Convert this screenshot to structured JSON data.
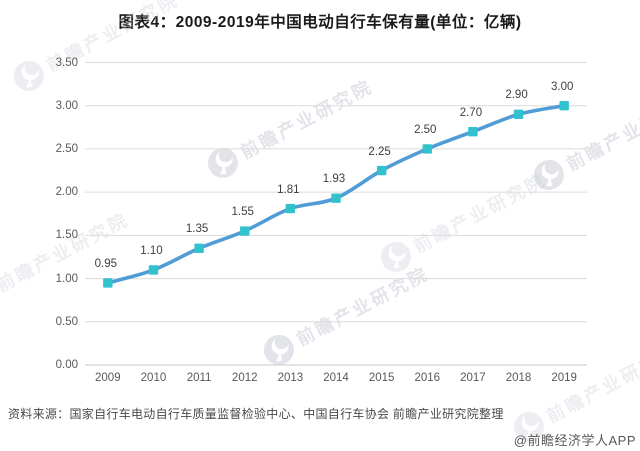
{
  "page": {
    "title": "图表4：2009-2019年中国电动自行车保有量(单位：亿辆)",
    "footer": {
      "source": "资料来源：国家自行车电动自行车质量监督检验中心、中国自行车协会 前瞻产业研究院整理",
      "credit": "@前瞻经济学人APP"
    },
    "watermark": {
      "text": "前瞻产业研究院"
    }
  },
  "chart_data": {
    "type": "line",
    "title": "图表4：2009-2019年中国电动自行车保有量(单位：亿辆)",
    "unit": "亿辆",
    "categories": [
      "2009",
      "2010",
      "2011",
      "2012",
      "2013",
      "2014",
      "2015",
      "2016",
      "2017",
      "2018",
      "2019"
    ],
    "values": [
      0.95,
      1.1,
      1.35,
      1.55,
      1.81,
      1.93,
      2.25,
      2.5,
      2.7,
      2.9,
      3.0
    ],
    "data_labels": [
      "0.95",
      "1.10",
      "1.35",
      "1.55",
      "1.81",
      "1.93",
      "2.25",
      "2.50",
      "2.70",
      "2.90",
      "3.00"
    ],
    "y_ticks": [
      "0.00",
      "0.50",
      "1.00",
      "1.50",
      "2.00",
      "2.50",
      "3.00",
      "3.50"
    ],
    "y_tick_values": [
      0,
      0.5,
      1.0,
      1.5,
      2.0,
      2.5,
      3.0,
      3.5
    ],
    "ylim": [
      0,
      3.5
    ],
    "xlabel": "",
    "ylabel": "",
    "grid": true,
    "legend_position": "none",
    "colors": {
      "line": "#4F9CD6",
      "marker": "#31C2CD",
      "grid": "#DCDCDC",
      "axis": "#C8C8C8",
      "tick_text": "#595959",
      "data_label_text": "#3F3F3F",
      "watermark": "#C6CBD4"
    }
  }
}
